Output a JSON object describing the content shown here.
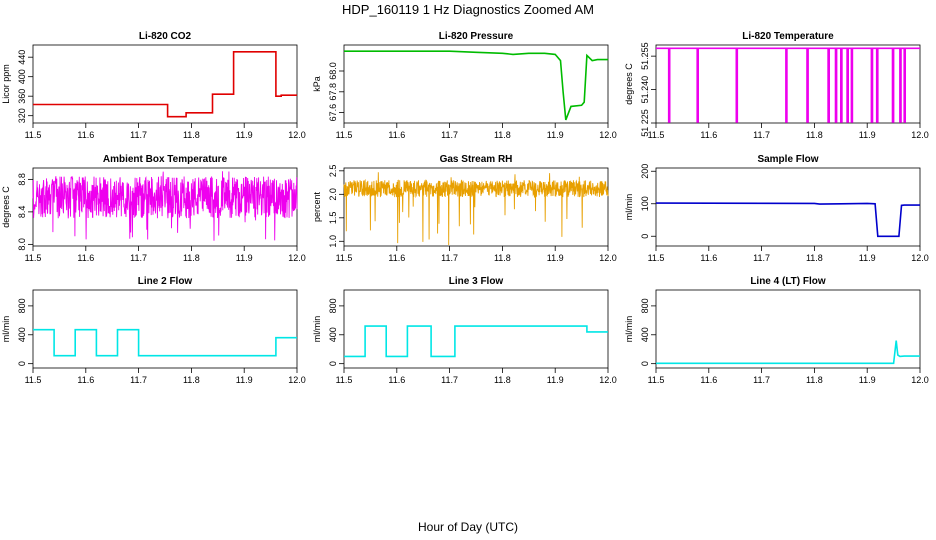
{
  "page": {
    "title": "HDP_160119  1 Hz Diagnostics Zoomed AM",
    "xlabel": "Hour of Day (UTC)"
  },
  "chart_data": [
    {
      "type": "line",
      "title": "Li-820 CO2",
      "ylabel": "Licor ppm",
      "color": "#e00000",
      "xlim": [
        11.5,
        12.0
      ],
      "ylim": [
        305,
        465
      ],
      "xticks": [
        "11.5",
        "11.6",
        "11.7",
        "11.8",
        "11.9",
        "12.0"
      ],
      "yticks": [
        [
          "320",
          "320"
        ],
        [
          "360",
          "360"
        ],
        [
          "400",
          "400"
        ],
        [
          "440",
          "440"
        ]
      ],
      "series": [
        {
          "x": [
            11.5,
            11.755,
            11.755,
            11.79,
            11.79,
            11.84,
            11.84,
            11.88,
            11.88,
            11.96,
            11.96,
            11.97,
            11.97,
            12.0
          ],
          "y": [
            343,
            343,
            318,
            318,
            326,
            326,
            364,
            364,
            451,
            451,
            360,
            360,
            362,
            362
          ]
        }
      ]
    },
    {
      "type": "line",
      "title": "Li-820 Pressure",
      "ylabel": "kPa",
      "color": "#00bb00",
      "xlim": [
        11.5,
        12.0
      ],
      "ylim": [
        67.5,
        68.25
      ],
      "xticks": [
        "11.5",
        "11.6",
        "11.7",
        "11.8",
        "11.9",
        "12.0"
      ],
      "yticks": [
        [
          "67.6",
          "67.6"
        ],
        [
          "67.8",
          "67.8"
        ],
        [
          "68.0",
          "68.0"
        ]
      ],
      "series": [
        {
          "x": [
            11.5,
            11.7,
            11.75,
            11.8,
            11.82,
            11.85,
            11.88,
            11.9,
            11.91,
            11.915,
            11.92,
            11.93,
            11.95,
            11.955,
            11.96,
            11.97,
            11.98,
            12.0
          ],
          "y": [
            68.19,
            68.19,
            68.18,
            68.17,
            68.16,
            68.17,
            68.17,
            68.16,
            68.1,
            67.8,
            67.53,
            67.66,
            67.67,
            67.7,
            68.15,
            68.1,
            68.11,
            68.11
          ]
        }
      ]
    },
    {
      "type": "line",
      "title": "Li-820 Temperature",
      "ylabel": "degrees C",
      "color": "#ee00ee",
      "xlim": [
        11.5,
        12.0
      ],
      "ylim": [
        51.225,
        51.26
      ],
      "xticks": [
        "11.5",
        "11.6",
        "11.7",
        "11.8",
        "11.9",
        "12.0"
      ],
      "yticks": [
        [
          "51.225",
          "51 225"
        ],
        [
          "51.24",
          "51.240"
        ],
        [
          "51.255",
          "51.255"
        ]
      ],
      "series": [
        {
          "x": [
            11.5,
            11.524,
            11.524,
            11.526,
            11.526,
            11.578,
            11.578,
            11.58,
            11.58,
            11.652,
            11.652,
            11.654,
            11.654,
            11.746,
            11.746,
            11.748,
            11.748,
            11.786,
            11.786,
            11.788,
            11.788,
            11.826,
            11.826,
            11.828,
            11.828,
            11.84,
            11.84,
            11.842,
            11.842,
            11.85,
            11.85,
            11.852,
            11.852,
            11.862,
            11.862,
            11.864,
            11.864,
            11.87,
            11.87,
            11.872,
            11.872,
            11.908,
            11.908,
            11.91,
            11.91,
            11.918,
            11.918,
            11.92,
            11.92,
            11.948,
            11.948,
            11.95,
            11.95,
            11.962,
            11.962,
            11.964,
            11.964,
            11.97,
            11.97,
            11.972,
            11.972,
            12.0
          ],
          "y": [
            51.2585,
            51.2585,
            51.2255,
            51.2255,
            51.2585,
            51.2585,
            51.2255,
            51.2255,
            51.2585,
            51.2585,
            51.2255,
            51.2255,
            51.2585,
            51.2585,
            51.2255,
            51.2255,
            51.2585,
            51.2585,
            51.2255,
            51.2255,
            51.2585,
            51.2585,
            51.2255,
            51.2255,
            51.2585,
            51.2585,
            51.2255,
            51.2255,
            51.2585,
            51.2585,
            51.2255,
            51.2255,
            51.2585,
            51.2585,
            51.2255,
            51.2255,
            51.2585,
            51.2585,
            51.2255,
            51.2255,
            51.2585,
            51.2585,
            51.2255,
            51.2255,
            51.2585,
            51.2585,
            51.2255,
            51.2255,
            51.2585,
            51.2585,
            51.2255,
            51.2255,
            51.2585,
            51.2585,
            51.2255,
            51.2255,
            51.2585,
            51.2585,
            51.2255,
            51.2255,
            51.2585,
            51.2585
          ]
        }
      ]
    },
    {
      "type": "line",
      "title": "Ambient Box Temperature",
      "ylabel": "degrees C",
      "color": "#ee00ee",
      "xlim": [
        11.5,
        12.0
      ],
      "ylim": [
        7.98,
        8.94
      ],
      "xticks": [
        "11.5",
        "11.6",
        "11.7",
        "11.8",
        "11.9",
        "12.0"
      ],
      "yticks": [
        [
          "8.0",
          "8.0"
        ],
        [
          "8.4",
          "8.4"
        ],
        [
          "8.8",
          "8.8"
        ]
      ],
      "noise": {
        "center": 8.58,
        "amp": 0.26,
        "min": 8.02,
        "max": 8.92
      }
    },
    {
      "type": "line",
      "title": "Gas Stream RH",
      "ylabel": "percent",
      "color": "#e8a000",
      "xlim": [
        11.5,
        12.0
      ],
      "ylim": [
        0.9,
        2.56
      ],
      "xticks": [
        "11.5",
        "11.6",
        "11.7",
        "11.8",
        "11.9",
        "12.0"
      ],
      "yticks": [
        [
          "1.0",
          "1.0"
        ],
        [
          "1.5",
          "1.5"
        ],
        [
          "2.0",
          "2.0"
        ],
        [
          "2.5",
          "2.5"
        ]
      ],
      "noise": {
        "center": 2.12,
        "amp": 0.18,
        "min": 0.92,
        "max": 2.48
      }
    },
    {
      "type": "line",
      "title": "Sample Flow",
      "ylabel": "ml/min",
      "color": "#0000cc",
      "xlim": [
        11.5,
        12.0
      ],
      "ylim": [
        -30,
        210
      ],
      "xticks": [
        "11.5",
        "11.6",
        "11.7",
        "11.8",
        "11.9",
        "12.0"
      ],
      "yticks": [
        [
          "0",
          "0"
        ],
        [
          "100",
          "100"
        ],
        [
          "200",
          "200"
        ]
      ],
      "series": [
        {
          "x": [
            11.5,
            11.8,
            11.81,
            11.85,
            11.9,
            11.915,
            11.92,
            11.96,
            11.965,
            11.97,
            12.0
          ],
          "y": [
            102,
            101,
            99,
            100,
            101,
            100,
            0,
            0,
            95,
            96,
            96
          ]
        }
      ]
    },
    {
      "type": "line",
      "title": "Line 2 Flow",
      "ylabel": "ml/min",
      "color": "#00e6e6",
      "xlim": [
        11.5,
        12.0
      ],
      "ylim": [
        -60,
        1020
      ],
      "xticks": [
        "11.5",
        "11.6",
        "11.7",
        "11.8",
        "11.9",
        "12.0"
      ],
      "yticks": [
        [
          "0",
          "0"
        ],
        [
          "400",
          "400"
        ],
        [
          "800",
          "800"
        ]
      ],
      "series": [
        {
          "x": [
            11.5,
            11.54,
            11.54,
            11.58,
            11.58,
            11.62,
            11.62,
            11.66,
            11.66,
            11.7,
            11.7,
            11.96,
            11.96,
            12.0
          ],
          "y": [
            470,
            470,
            110,
            110,
            470,
            470,
            110,
            110,
            470,
            470,
            110,
            110,
            360,
            360
          ]
        }
      ]
    },
    {
      "type": "line",
      "title": "Line 3 Flow",
      "ylabel": "ml/min",
      "color": "#00e6e6",
      "xlim": [
        11.5,
        12.0
      ],
      "ylim": [
        -60,
        1020
      ],
      "xticks": [
        "11.5",
        "11.6",
        "11.7",
        "11.8",
        "11.9",
        "12.0"
      ],
      "yticks": [
        [
          "0",
          "0"
        ],
        [
          "400",
          "400"
        ],
        [
          "800",
          "800"
        ]
      ],
      "series": [
        {
          "x": [
            11.5,
            11.54,
            11.54,
            11.58,
            11.58,
            11.62,
            11.62,
            11.665,
            11.665,
            11.71,
            11.71,
            11.96,
            11.96,
            12.0
          ],
          "y": [
            100,
            100,
            520,
            520,
            100,
            100,
            520,
            520,
            100,
            100,
            520,
            520,
            440,
            440
          ]
        }
      ]
    },
    {
      "type": "line",
      "title": "Line 4 (LT) Flow",
      "ylabel": "ml/min",
      "color": "#00e6e6",
      "xlim": [
        11.5,
        12.0
      ],
      "ylim": [
        -60,
        1020
      ],
      "xticks": [
        "11.5",
        "11.6",
        "11.7",
        "11.8",
        "11.9",
        "12.0"
      ],
      "yticks": [
        [
          "0",
          "0"
        ],
        [
          "400",
          "400"
        ],
        [
          "800",
          "800"
        ]
      ],
      "series": [
        {
          "x": [
            11.5,
            11.95,
            11.955,
            11.958,
            11.962,
            11.97,
            12.0
          ],
          "y": [
            5,
            5,
            320,
            120,
            100,
            105,
            105
          ]
        }
      ]
    }
  ]
}
